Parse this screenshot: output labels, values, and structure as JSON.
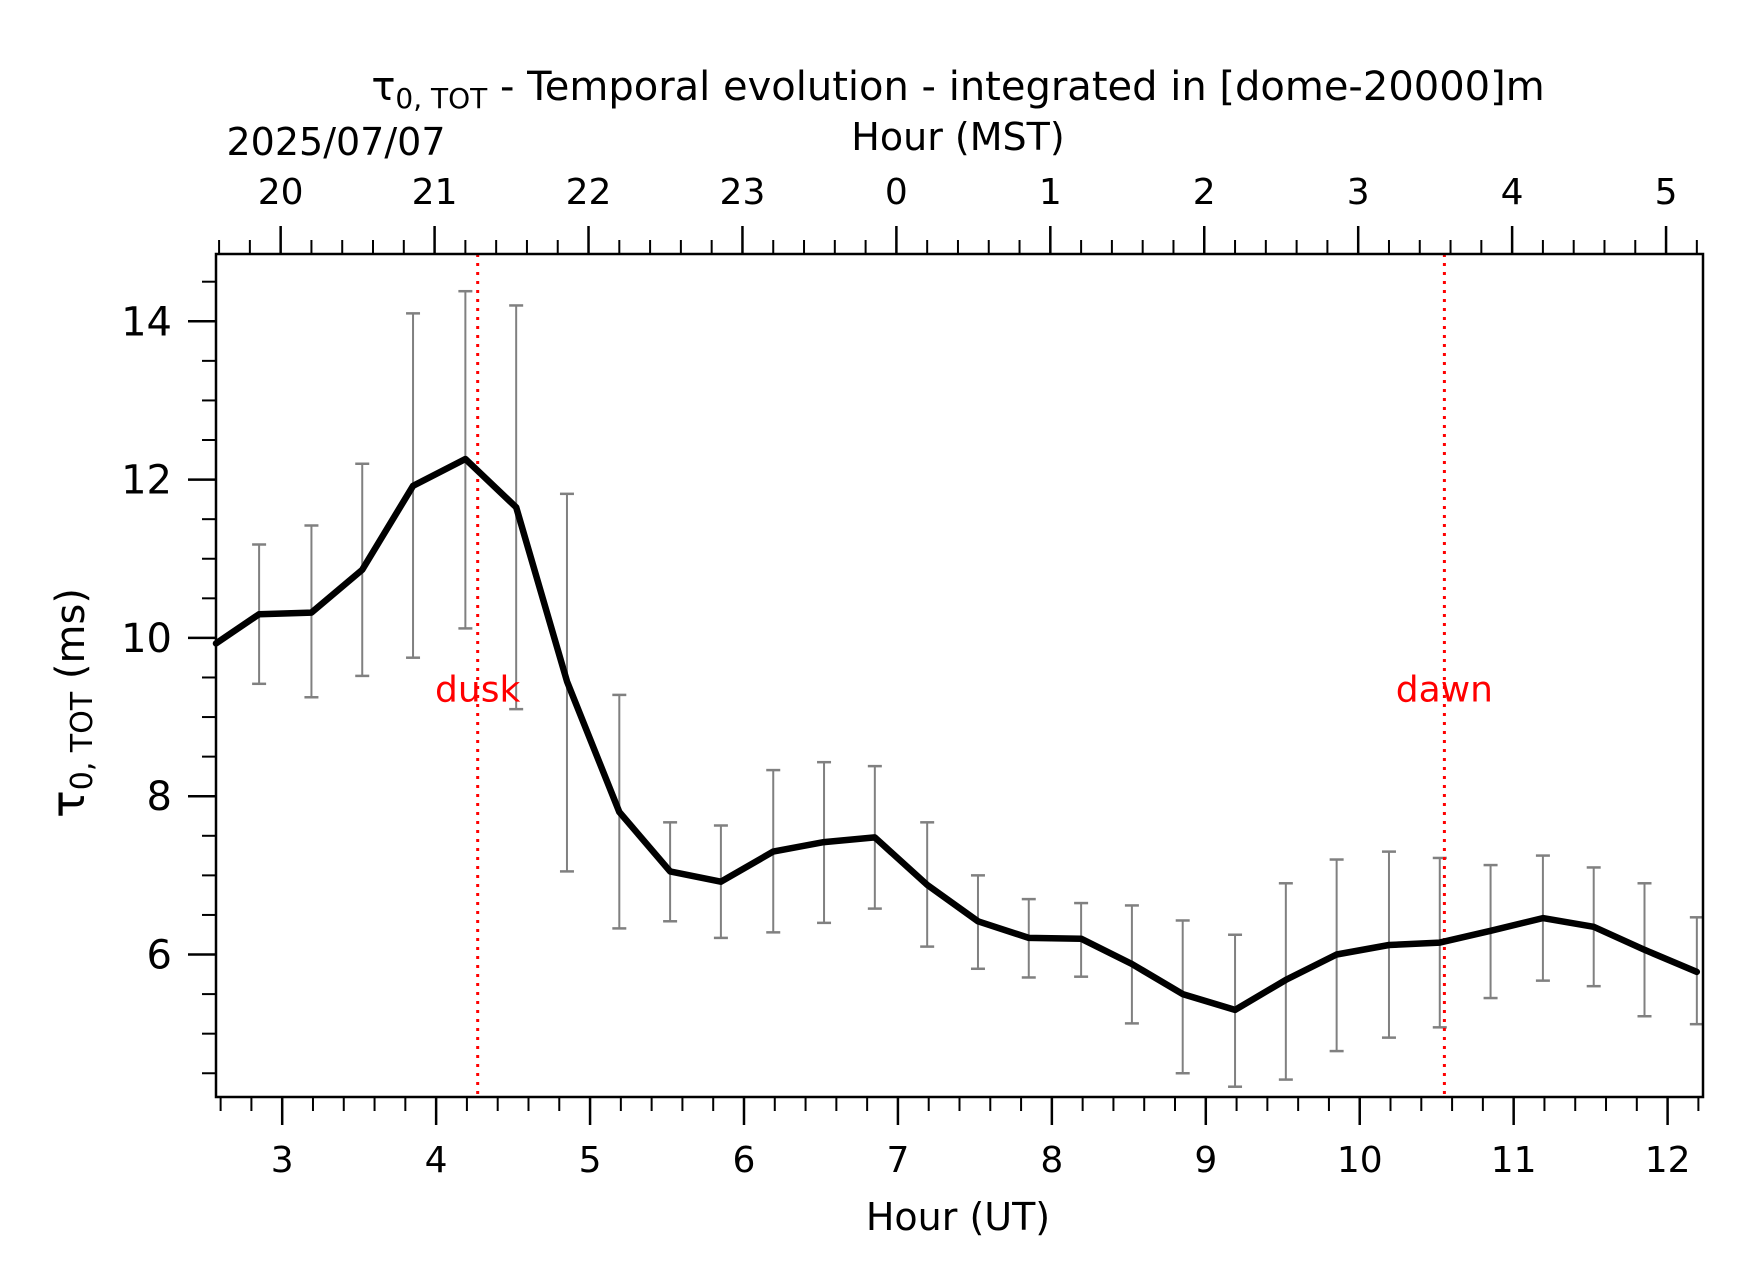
{
  "chart_data": {
    "type": "line",
    "title": {
      "symbol": "τ",
      "subscript": "0, TOT",
      "text": " - Temporal evolution - integrated in [dome-20000]m"
    },
    "date_label": "2025/07/07",
    "xlabel": "Hour (UT)",
    "xlabel_top": "Hour (MST)",
    "ylabel": {
      "symbol": "τ",
      "subscript": "0, TOT",
      "unit": " (ms)"
    },
    "xlim": [
      2.57,
      12.23
    ],
    "ylim": [
      4.2,
      14.85
    ],
    "x_ticks": [
      3,
      4,
      5,
      6,
      7,
      8,
      9,
      10,
      11,
      12
    ],
    "x_tick_labels": [
      "3",
      "4",
      "5",
      "6",
      "7",
      "8",
      "9",
      "10",
      "11",
      "12"
    ],
    "x_top_ticks": [
      2.99,
      3.99,
      4.99,
      5.99,
      6.99,
      7.99,
      8.99,
      9.99,
      10.99,
      11.99
    ],
    "x_top_tick_labels": [
      "20",
      "21",
      "22",
      "23",
      "0",
      "1",
      "2",
      "3",
      "4",
      "5"
    ],
    "y_ticks": [
      6,
      8,
      10,
      12,
      14
    ],
    "y_tick_labels": [
      "6",
      "8",
      "10",
      "12",
      "14"
    ],
    "series": [
      {
        "color": "#000000",
        "x": [
          2.57,
          2.85,
          3.19,
          3.52,
          3.85,
          4.19,
          4.52,
          4.85,
          5.19,
          5.52,
          5.85,
          6.19,
          6.52,
          6.85,
          7.19,
          7.52,
          7.85,
          8.19,
          8.52,
          8.85,
          9.19,
          9.52,
          9.85,
          10.19,
          10.52,
          10.85,
          11.19,
          11.52,
          11.85,
          12.19
        ],
        "y": [
          9.93,
          10.3,
          10.32,
          10.86,
          11.92,
          12.26,
          11.65,
          9.45,
          7.8,
          7.05,
          6.92,
          7.3,
          7.42,
          7.48,
          6.88,
          6.42,
          6.21,
          6.2,
          5.88,
          5.5,
          5.3,
          5.68,
          6.0,
          6.12,
          6.15,
          6.3,
          6.46,
          6.35,
          6.06,
          5.78
        ],
        "err_low": [
          null,
          9.42,
          9.25,
          9.52,
          9.75,
          10.12,
          9.1,
          7.05,
          6.33,
          6.42,
          6.21,
          6.28,
          6.4,
          6.58,
          6.1,
          5.82,
          5.71,
          5.72,
          5.13,
          4.5,
          4.33,
          4.42,
          4.78,
          4.95,
          5.08,
          5.45,
          5.67,
          5.6,
          5.22,
          5.12
        ],
        "err_high": [
          null,
          11.18,
          11.42,
          12.2,
          14.1,
          14.38,
          14.2,
          11.82,
          9.28,
          7.67,
          7.63,
          8.33,
          8.43,
          8.38,
          7.67,
          7.0,
          6.7,
          6.65,
          6.62,
          6.43,
          6.25,
          6.9,
          7.2,
          7.3,
          7.22,
          7.13,
          7.25,
          7.1,
          6.9,
          6.47
        ]
      }
    ],
    "error_bar_color": "#808080",
    "vlines": [
      {
        "x": 4.27,
        "label": "dusk",
        "color": "#ff0000"
      },
      {
        "x": 10.55,
        "label": "dawn",
        "color": "#ff0000"
      }
    ],
    "vline_label_y": 9.35
  }
}
